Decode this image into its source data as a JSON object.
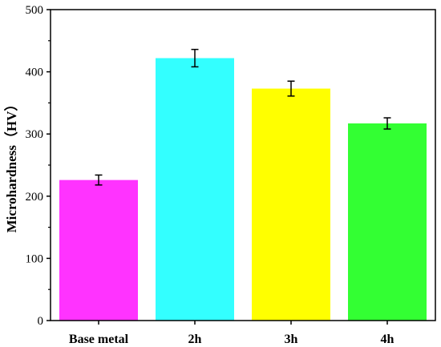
{
  "chart_data": {
    "type": "bar",
    "title": "",
    "xlabel": "",
    "ylabel": "Microhardness（HV）",
    "ylim": [
      0,
      500
    ],
    "yticks": [
      0,
      100,
      200,
      300,
      400,
      500
    ],
    "grid": false,
    "categories": [
      "Base metal",
      "2h",
      "3h",
      "4h"
    ],
    "values": [
      226,
      422,
      373,
      317
    ],
    "errors": [
      8,
      14,
      12,
      9
    ],
    "colors": [
      "#ff33ff",
      "#33ffff",
      "#ffff00",
      "#33ff33"
    ]
  }
}
